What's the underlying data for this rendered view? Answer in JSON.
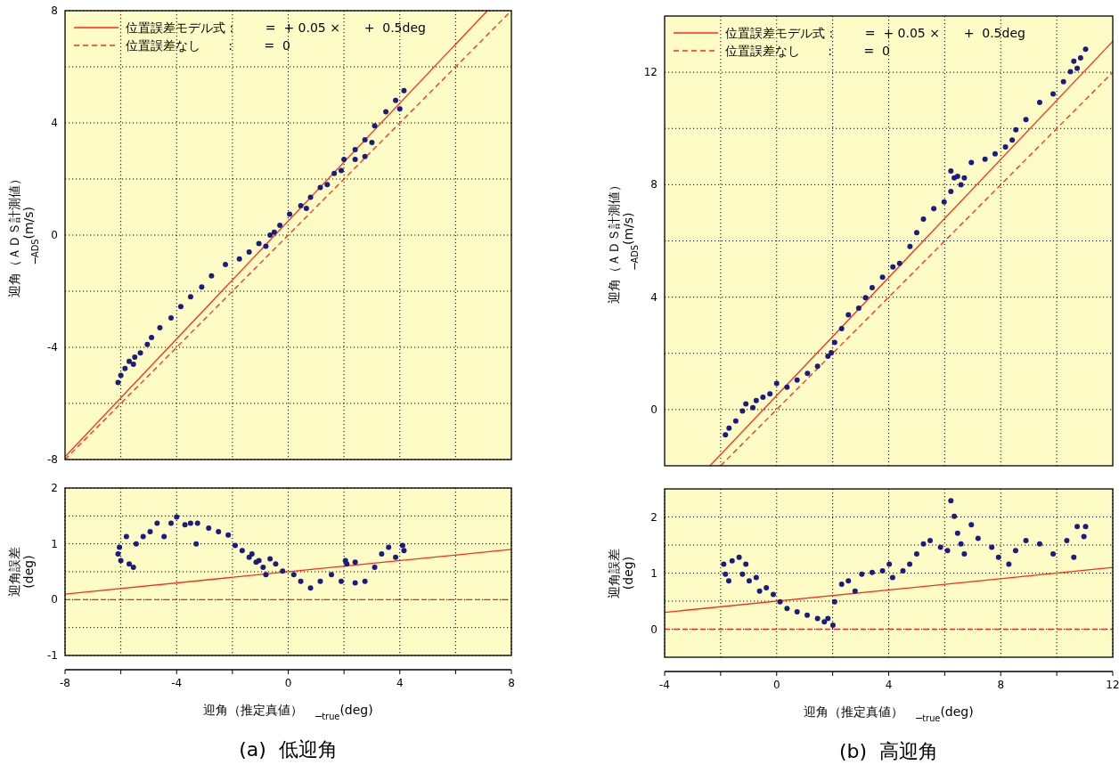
{
  "chart_data": [
    {
      "type": "scatter",
      "ylabel": "迎角（ＡＤＳ計測値）\n_$_{ADS}$(m/s)",
      "xlim": [
        -8,
        8
      ],
      "ylim": [
        -8,
        8
      ],
      "xticks": [
        {
          "value": -6,
          "label": null
        },
        {
          "value": -4,
          "label": null
        },
        {
          "value": -2,
          "label": null
        },
        {
          "value": 0,
          "label": null
        },
        {
          "value": 2,
          "label": null
        },
        {
          "value": 4,
          "label": null
        },
        {
          "value": 6,
          "label": null
        }
      ],
      "yticks": [
        -8,
        {
          "value": -6,
          "label": null
        },
        -4,
        {
          "value": -2,
          "label": null
        },
        0,
        {
          "value": 2,
          "label": null
        },
        4,
        {
          "value": 6,
          "label": null
        },
        8
      ],
      "grid": true,
      "legend": "top left",
      "tick_labels": "y",
      "series": [
        {
          "type": "scatter",
          "marker": "circle",
          "color": "#1c1c80",
          "x": [
            -6.1,
            -6.0,
            -5.85,
            -5.7,
            -5.55,
            -5.5,
            -5.3,
            -5.05,
            -4.9,
            -4.6,
            -4.2,
            -3.85,
            -3.5,
            -3.1,
            -2.75,
            -2.25,
            -1.75,
            -1.4,
            -1.05,
            -0.8,
            -0.65,
            -0.5,
            -0.3,
            0.05,
            0.45,
            0.65,
            0.8,
            1.15,
            1.4,
            1.65,
            2.0,
            2.4,
            2.75,
            3.0,
            3.1,
            3.5,
            3.85,
            4.15,
            2.4,
            2.75,
            1.9,
            4.0
          ],
          "values": [
            -5.25,
            -5.0,
            -4.75,
            -4.5,
            -4.6,
            -4.35,
            -4.2,
            -3.9,
            -3.65,
            -3.3,
            -2.95,
            -2.55,
            -2.2,
            -1.85,
            -1.45,
            -1.05,
            -0.85,
            -0.6,
            -0.3,
            -0.4,
            0.0,
            0.1,
            0.35,
            0.75,
            1.05,
            0.95,
            1.35,
            1.7,
            1.8,
            2.2,
            2.7,
            3.05,
            3.4,
            3.3,
            3.9,
            4.4,
            4.8,
            5.15,
            2.7,
            2.8,
            2.3,
            4.5
          ]
        },
        {
          "type": "line",
          "name": "位置誤差モデル式 :        =  + 0.05 ×      +  0.5deg",
          "color": "#ff2a1a",
          "line_style": "solid",
          "x": [
            -8,
            7.14
          ],
          "values": [
            -7.9,
            8.0
          ]
        },
        {
          "type": "line",
          "name": "位置誤差なし       :        =  0",
          "color": "#ff2a1a",
          "line_style": "dashed",
          "x": [
            -8,
            8
          ],
          "values": [
            -8,
            8
          ]
        }
      ]
    },
    {
      "type": "scatter",
      "title": "(a)  低迎角",
      "xlabel": "迎角（推定真値）　_$_{true}$(deg)",
      "ylabel": "迎角誤差\n(deg)",
      "xlim": [
        -8,
        8
      ],
      "ylim": [
        -1,
        2
      ],
      "xticks": [
        -8,
        {
          "value": -6,
          "label": null
        },
        -4,
        {
          "value": -2,
          "label": null
        },
        0,
        {
          "value": 2,
          "label": null
        },
        4,
        {
          "value": 6,
          "label": null
        },
        8
      ],
      "yticks": [
        -1,
        {
          "value": -0.5,
          "label": null
        },
        0,
        {
          "value": 0.5,
          "label": null
        },
        1,
        {
          "value": 1.5,
          "label": null
        },
        2
      ],
      "grid": true,
      "series": [
        {
          "type": "scatter",
          "marker": "circle",
          "color": "#1c1c80",
          "x": [
            -6.1,
            -6.05,
            -6.0,
            -5.8,
            -5.7,
            -5.55,
            -5.45,
            -5.2,
            -4.95,
            -4.7,
            -4.45,
            -4.2,
            -4.0,
            -3.7,
            -3.5,
            -3.3,
            -3.25,
            -2.85,
            -2.5,
            -2.15,
            -1.9,
            -1.65,
            -1.4,
            -1.15,
            -0.9,
            -0.65,
            -0.45,
            -0.2,
            0.2,
            0.45,
            0.8,
            1.15,
            1.55,
            1.9,
            2.1,
            2.4,
            2.75,
            3.1,
            3.35,
            3.6,
            3.85,
            4.1,
            4.15,
            -1.3,
            -1.05,
            -0.8,
            2.05,
            2.4
          ],
          "values": [
            0.82,
            0.94,
            0.7,
            1.13,
            0.64,
            0.58,
            1.0,
            1.13,
            1.22,
            1.37,
            1.13,
            1.37,
            1.48,
            1.34,
            1.37,
            1.0,
            1.37,
            1.28,
            1.22,
            1.16,
            0.97,
            0.88,
            0.76,
            0.67,
            0.58,
            0.73,
            0.64,
            0.51,
            0.45,
            0.33,
            0.21,
            0.33,
            0.45,
            0.33,
            0.64,
            0.3,
            0.33,
            0.58,
            0.82,
            0.94,
            0.76,
            0.97,
            0.88,
            0.82,
            0.7,
            0.45,
            0.7,
            0.67
          ]
        },
        {
          "type": "line",
          "color": "#ff2a1a",
          "line_style": "solid",
          "x": [
            -8,
            8
          ],
          "values": [
            0.1,
            0.9
          ]
        },
        {
          "type": "line",
          "color": "#ff2a1a",
          "line_style": "dashed",
          "x": [
            -8,
            8
          ],
          "values": [
            0,
            0
          ]
        }
      ]
    },
    {
      "type": "scatter",
      "ylabel": "迎角（ＡＤＳ計測値）\n_$_{ADS}$(m/s)",
      "xlim": [
        -4,
        12
      ],
      "ylim": [
        -2,
        14
      ],
      "xticks": [
        {
          "value": -2,
          "label": null
        },
        {
          "value": 0,
          "label": null
        },
        {
          "value": 2,
          "label": null
        },
        {
          "value": 4,
          "label": null
        },
        {
          "value": 6,
          "label": null
        },
        {
          "value": 8,
          "label": null
        },
        {
          "value": 10,
          "label": null
        }
      ],
      "yticks": [
        0,
        {
          "value": 2,
          "label": null
        },
        4,
        {
          "value": 6,
          "label": null
        },
        8,
        {
          "value": 10,
          "label": null
        },
        12
      ],
      "grid": true,
      "legend": "top left",
      "tick_labels": "y",
      "series": [
        {
          "type": "scatter",
          "marker": "circle",
          "color": "#1c1c80",
          "x": [
            -1.83,
            -1.7,
            -1.46,
            -1.22,
            -1.1,
            -0.85,
            -0.73,
            -0.49,
            -0.24,
            0.0,
            0.37,
            0.73,
            1.1,
            1.46,
            1.83,
            1.95,
            2.07,
            2.32,
            2.56,
            2.93,
            3.17,
            3.41,
            3.78,
            4.15,
            4.39,
            4.76,
            5.0,
            5.24,
            5.61,
            5.98,
            6.22,
            6.58,
            6.7,
            6.46,
            6.22,
            6.34,
            6.95,
            7.44,
            7.8,
            8.17,
            8.41,
            8.54,
            8.9,
            9.39,
            9.87,
            10.24,
            10.49,
            10.61,
            10.85,
            11.03,
            10.73
          ],
          "values": [
            -0.9,
            -0.66,
            -0.41,
            -0.05,
            0.2,
            0.07,
            0.32,
            0.44,
            0.56,
            0.93,
            0.8,
            1.05,
            1.29,
            1.54,
            1.9,
            2.02,
            2.39,
            2.88,
            3.37,
            3.61,
            3.98,
            4.34,
            4.71,
            5.07,
            5.2,
            5.8,
            6.29,
            6.78,
            7.15,
            7.39,
            7.76,
            8.0,
            8.24,
            8.3,
            8.49,
            8.24,
            8.79,
            8.91,
            9.1,
            9.34,
            9.59,
            9.95,
            10.32,
            10.93,
            11.23,
            11.66,
            12.02,
            12.39,
            12.51,
            12.82,
            12.14
          ]
        },
        {
          "type": "line",
          "name": "位置誤差モデル式 :        =  + 0.05 ×      +  0.5deg",
          "color": "#ff2a1a",
          "line_style": "solid",
          "x": [
            -2.38,
            12
          ],
          "values": [
            -2.0,
            13.1
          ]
        },
        {
          "type": "line",
          "name": "位置誤差なし       :        =  0",
          "color": "#ff2a1a",
          "line_style": "dashed",
          "x": [
            -2,
            12
          ],
          "values": [
            -2,
            12
          ]
        }
      ]
    },
    {
      "type": "scatter",
      "title": "(b)  高迎角",
      "xlabel": "迎角（推定真値）　_$_{true}$(deg)",
      "ylabel": "迎角誤差\n(deg)",
      "xlim": [
        -4,
        12
      ],
      "ylim": [
        -0.5,
        2.5
      ],
      "xticks": [
        -4,
        {
          "value": -2,
          "label": null
        },
        0,
        {
          "value": 2,
          "label": null
        },
        4,
        {
          "value": 6,
          "label": null
        },
        8,
        {
          "value": 10,
          "label": null
        },
        12
      ],
      "yticks": [
        0,
        {
          "value": 0.5,
          "label": null
        },
        1,
        {
          "value": 1.5,
          "label": null
        },
        2
      ],
      "grid": true,
      "series": [
        {
          "type": "scatter",
          "marker": "circle",
          "color": "#1c1c80",
          "x": [
            -1.89,
            -1.83,
            -1.71,
            -1.59,
            -1.34,
            -1.22,
            -1.1,
            -0.98,
            -0.73,
            -0.61,
            -0.37,
            -0.12,
            0.12,
            0.37,
            0.73,
            1.09,
            1.46,
            1.7,
            1.83,
            2.01,
            2.07,
            2.32,
            2.56,
            2.8,
            3.04,
            3.41,
            3.78,
            4.02,
            4.14,
            4.51,
            4.75,
            5.0,
            5.24,
            5.48,
            5.85,
            6.1,
            6.22,
            6.34,
            6.46,
            6.58,
            6.7,
            6.95,
            7.19,
            7.68,
            7.92,
            8.29,
            8.53,
            8.9,
            9.39,
            9.87,
            10.36,
            10.61,
            10.73,
            10.97,
            11.03
          ],
          "values": [
            1.16,
            0.98,
            0.86,
            1.22,
            1.28,
            0.98,
            1.16,
            0.86,
            0.92,
            0.68,
            0.74,
            0.62,
            0.49,
            0.37,
            0.31,
            0.25,
            0.19,
            0.13,
            0.19,
            0.07,
            0.49,
            0.8,
            0.86,
            0.68,
            0.98,
            1.01,
            1.04,
            1.16,
            0.92,
            1.04,
            1.16,
            1.34,
            1.52,
            1.58,
            1.46,
            1.4,
            2.29,
            2.01,
            1.71,
            1.52,
            1.34,
            1.86,
            1.62,
            1.46,
            1.28,
            1.16,
            1.4,
            1.58,
            1.52,
            1.34,
            1.58,
            1.28,
            1.83,
            1.65,
            1.83
          ]
        },
        {
          "type": "line",
          "color": "#ff2a1a",
          "line_style": "solid",
          "x": [
            -4,
            12
          ],
          "values": [
            0.3,
            1.1
          ]
        },
        {
          "type": "line",
          "color": "#ff2a1a",
          "line_style": "dashed",
          "x": [
            -4,
            12
          ],
          "values": [
            0,
            0
          ]
        }
      ]
    }
  ]
}
